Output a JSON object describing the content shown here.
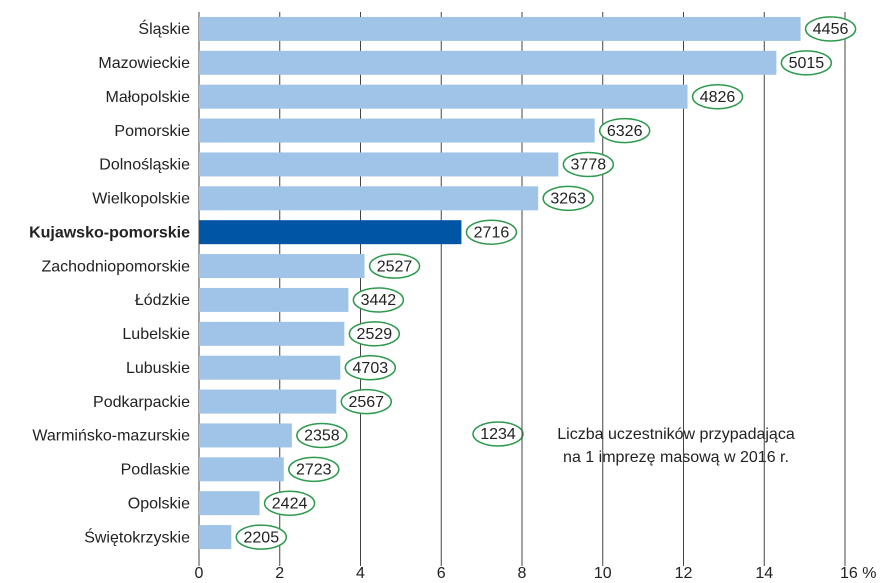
{
  "chart_data": {
    "type": "barh",
    "categories": [
      "Śląskie",
      "Mazowieckie",
      "Małopolskie",
      "Pomorskie",
      "Dolnośląskie",
      "Wielkopolskie",
      "Kujawsko-pomorskie",
      "Zachodniopomorskie",
      "Łódzkie",
      "Lubelskie",
      "Lubuskie",
      "Podkarpackie",
      "Warmińsko-mazurskie",
      "Podlaskie",
      "Opolskie",
      "Świętokrzyskie"
    ],
    "values": [
      14.9,
      14.3,
      12.1,
      9.8,
      8.9,
      8.4,
      6.5,
      4.1,
      3.7,
      3.6,
      3.5,
      3.4,
      2.3,
      2.1,
      1.5,
      0.8
    ],
    "participants": [
      "4456",
      "5015",
      "4826",
      "6326",
      "3778",
      "3263",
      "2716",
      "2527",
      "3442",
      "2529",
      "4703",
      "2567",
      "2358",
      "2723",
      "2424",
      "2205"
    ],
    "color": "#a0c4e8",
    "highlight": "Kujawsko-pomorskie",
    "highlight_color": "#0055a5",
    "bubble_color": "#2e9a4e",
    "xlim": [
      0,
      16
    ],
    "xticks": [
      0,
      2,
      4,
      6,
      8,
      10,
      12,
      14,
      {
        "value": 16,
        "label": "16 %"
      }
    ],
    "grid": true,
    "legend": {
      "sample": "1234",
      "text": [
        "Liczba uczestników przypadająca",
        "na 1 imprezę masową w 2016 r."
      ]
    }
  }
}
